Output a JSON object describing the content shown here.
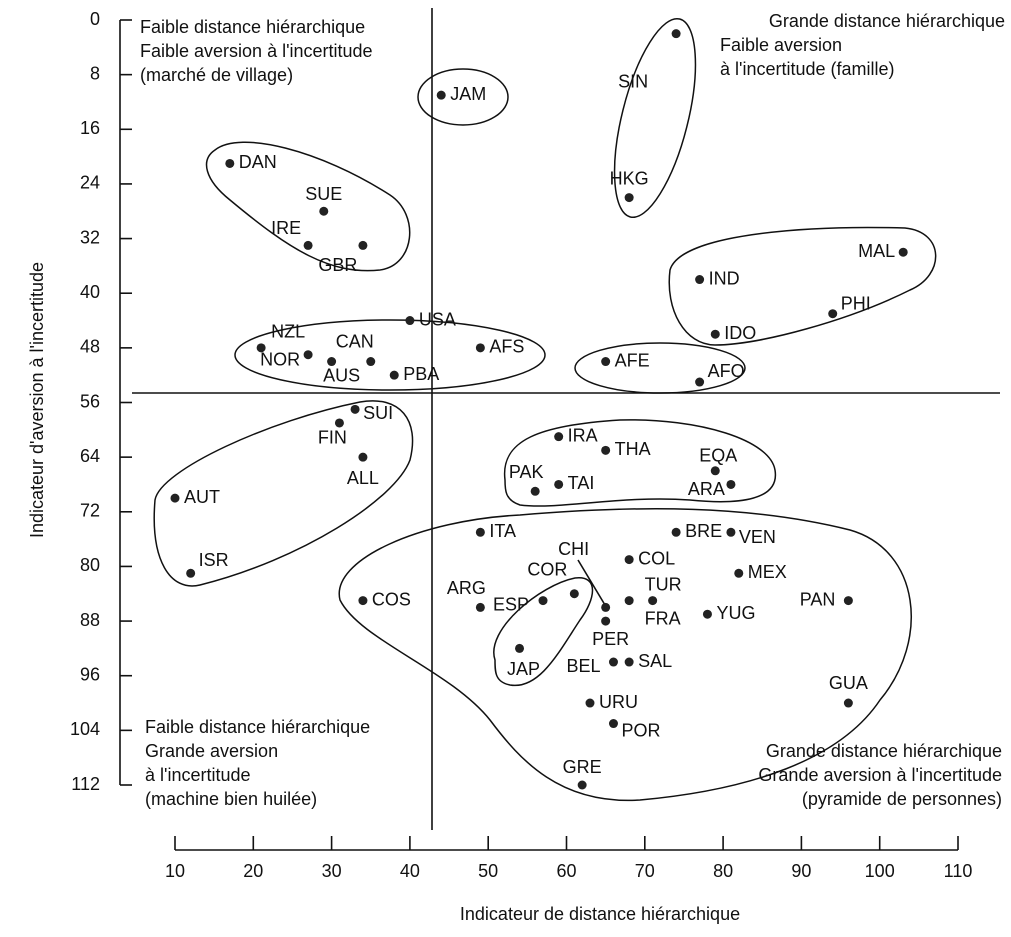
{
  "chart_data": {
    "type": "scatter",
    "x_label": "Indicateur de distance hiérarchique",
    "y_label": "Indicateur d'aversion à l'incertitude",
    "xlim": [
      10,
      110
    ],
    "xticks": [
      10,
      20,
      30,
      40,
      50,
      60,
      70,
      80,
      90,
      100,
      110
    ],
    "ylim": [
      0,
      112
    ],
    "yticks": [
      0,
      8,
      16,
      24,
      32,
      40,
      48,
      56,
      64,
      72,
      80,
      88,
      96,
      104,
      112
    ],
    "y_reversed": true,
    "color": "#222222",
    "annotations": [
      [
        "Faible distance hiérarchique",
        "Faible aversion à l'incertitude",
        "(marché de village)"
      ],
      [
        "Grande distance hiérarchique",
        "Faible aversion",
        "à l'incertitude (famille)"
      ],
      [
        "Faible distance hiérarchique",
        "Grande aversion",
        "à l'incertitude",
        "(machine bien huilée)"
      ],
      [
        "Grande distance hiérarchique",
        "Grande aversion à l'incertitude",
        "(pyramide de personnes)"
      ]
    ],
    "labels": [
      "JAM",
      "SIN",
      "HKG",
      "DAN",
      "SUE",
      "IRE",
      "GBR",
      "NZL",
      "NOR",
      "AUS",
      "CAN",
      "USA",
      "PBA",
      "AFS",
      "MAL",
      "IND",
      "PHI",
      "IDO",
      "AFE",
      "AFO",
      "SUI",
      "FIN",
      "ALL",
      "AUT",
      "ISR",
      "IRA",
      "THA",
      "EQA",
      "ARA",
      "PAK",
      "TAI",
      "ITA",
      "BRE",
      "VEN",
      "COL",
      "CHI",
      "PER",
      "TUR",
      "FRA",
      "MEX",
      "PAN",
      "YUG",
      "COR",
      "ARG",
      "ESP",
      "COS",
      "JAP",
      "BEL",
      "SAL",
      "URU",
      "POR",
      "GRE",
      "GUA"
    ],
    "x": [
      44,
      74,
      68,
      17,
      29,
      27,
      34,
      21,
      27,
      30,
      35,
      40,
      38,
      49,
      103,
      77,
      94,
      79,
      65,
      77,
      33,
      31,
      34,
      10,
      12,
      59,
      65,
      79,
      81,
      56,
      59,
      49,
      74,
      81,
      68,
      65,
      65,
      68,
      71,
      82,
      96,
      78,
      61,
      49,
      57,
      34,
      54,
      66,
      68,
      63,
      66,
      62,
      96
    ],
    "y": [
      11,
      2,
      26,
      21,
      28,
      33,
      33,
      48,
      49,
      50,
      50,
      44,
      52,
      48,
      34,
      38,
      43,
      46,
      50,
      53,
      57,
      59,
      64,
      70,
      81,
      61,
      63,
      66,
      68,
      69,
      68,
      75,
      75,
      75,
      79,
      86,
      88,
      85,
      85,
      81,
      85,
      87,
      84,
      86,
      85,
      85,
      92,
      94,
      94,
      100,
      103,
      112,
      100
    ]
  }
}
